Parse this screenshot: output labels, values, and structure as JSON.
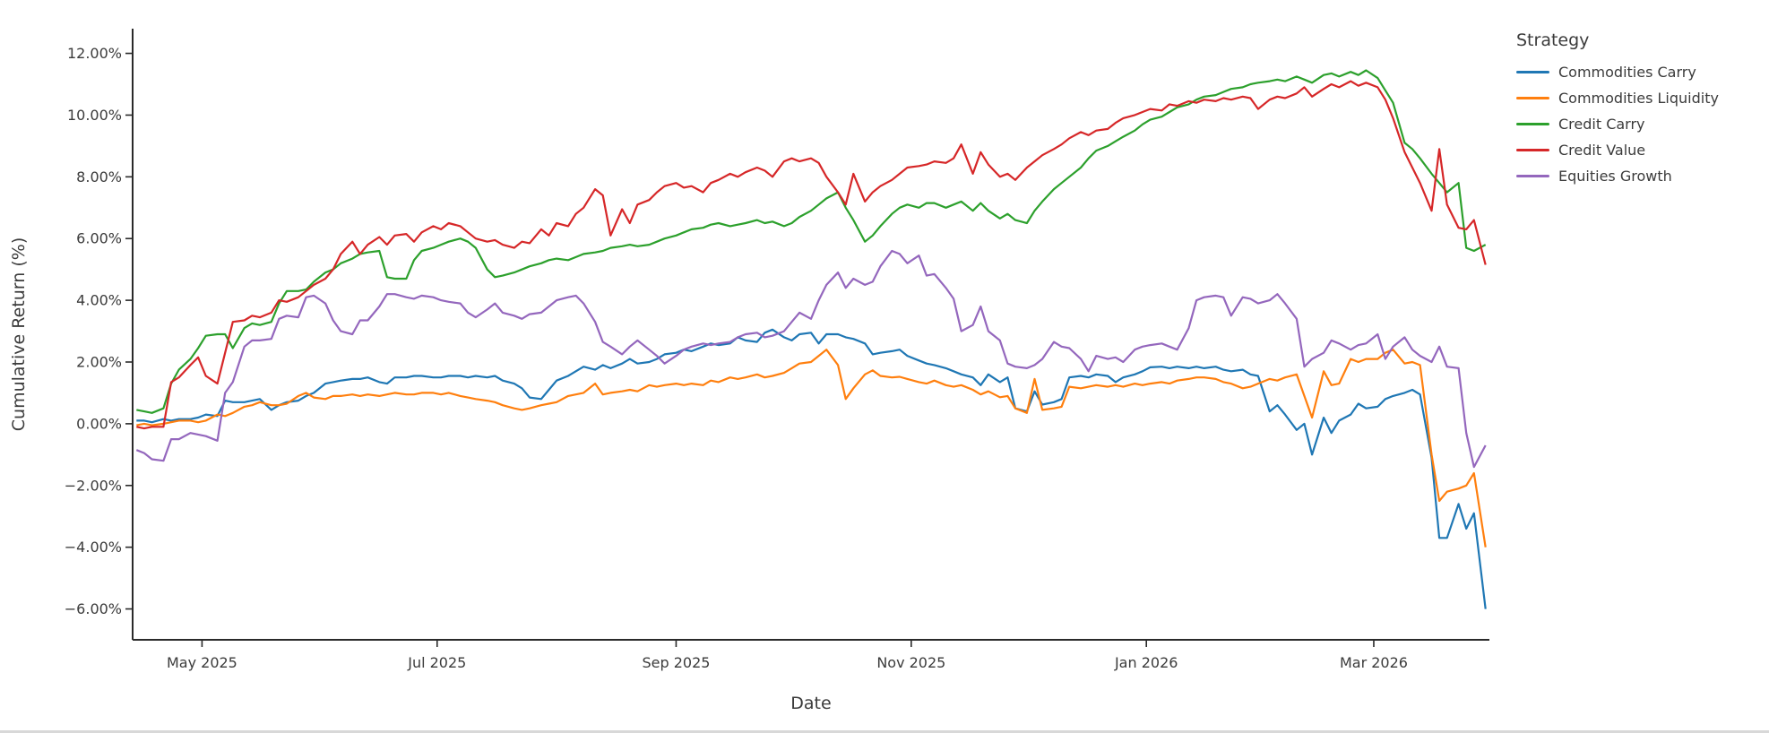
{
  "chart_data": {
    "type": "line",
    "title": "",
    "xlabel": "Date",
    "ylabel": "Cumulative Return (%)",
    "legend_title": "Strategy",
    "legend_position": "right",
    "grid": false,
    "text_color": "#3b3b3b",
    "axis_color": "#2a2a2a",
    "background_color": "#ffffff",
    "xlim": [
      "2025-04-13",
      "2026-03-31"
    ],
    "ylim": [
      -7.0,
      12.8
    ],
    "yticks": [
      {
        "v": 12,
        "label": "12.00%"
      },
      {
        "v": 10,
        "label": "10.00%"
      },
      {
        "v": 8,
        "label": "8.00%"
      },
      {
        "v": 6,
        "label": "6.00%"
      },
      {
        "v": 4,
        "label": "4.00%"
      },
      {
        "v": 2,
        "label": "2.00%"
      },
      {
        "v": 0,
        "label": "0.00%"
      },
      {
        "v": -2,
        "label": "−2.00%"
      },
      {
        "v": -4,
        "label": "−4.00%"
      },
      {
        "v": -6,
        "label": "−6.00%"
      }
    ],
    "xticks": [
      {
        "date": "2025-05-01",
        "label": "May 2025"
      },
      {
        "date": "2025-07-01",
        "label": "Jul 2025"
      },
      {
        "date": "2025-09-01",
        "label": "Sep 2025"
      },
      {
        "date": "2025-11-01",
        "label": "Nov 2025"
      },
      {
        "date": "2026-01-01",
        "label": "Jan 2026"
      },
      {
        "date": "2026-03-01",
        "label": "Mar 2026"
      }
    ],
    "x_dates": [
      "2025-04-14",
      "2025-04-16",
      "2025-04-18",
      "2025-04-21",
      "2025-04-23",
      "2025-04-25",
      "2025-04-28",
      "2025-04-30",
      "2025-05-02",
      "2025-05-05",
      "2025-05-07",
      "2025-05-09",
      "2025-05-12",
      "2025-05-14",
      "2025-05-16",
      "2025-05-19",
      "2025-05-21",
      "2025-05-23",
      "2025-05-26",
      "2025-05-28",
      "2025-05-30",
      "2025-06-02",
      "2025-06-04",
      "2025-06-06",
      "2025-06-09",
      "2025-06-11",
      "2025-06-13",
      "2025-06-16",
      "2025-06-18",
      "2025-06-20",
      "2025-06-23",
      "2025-06-25",
      "2025-06-27",
      "2025-06-30",
      "2025-07-02",
      "2025-07-04",
      "2025-07-07",
      "2025-07-09",
      "2025-07-11",
      "2025-07-14",
      "2025-07-16",
      "2025-07-18",
      "2025-07-21",
      "2025-07-23",
      "2025-07-25",
      "2025-07-28",
      "2025-07-30",
      "2025-08-01",
      "2025-08-04",
      "2025-08-06",
      "2025-08-08",
      "2025-08-11",
      "2025-08-13",
      "2025-08-15",
      "2025-08-18",
      "2025-08-20",
      "2025-08-22",
      "2025-08-25",
      "2025-08-27",
      "2025-08-29",
      "2025-09-01",
      "2025-09-03",
      "2025-09-05",
      "2025-09-08",
      "2025-09-10",
      "2025-09-12",
      "2025-09-15",
      "2025-09-17",
      "2025-09-19",
      "2025-09-22",
      "2025-09-24",
      "2025-09-26",
      "2025-09-29",
      "2025-10-01",
      "2025-10-03",
      "2025-10-06",
      "2025-10-08",
      "2025-10-10",
      "2025-10-13",
      "2025-10-15",
      "2025-10-17",
      "2025-10-20",
      "2025-10-22",
      "2025-10-24",
      "2025-10-27",
      "2025-10-29",
      "2025-10-31",
      "2025-11-03",
      "2025-11-05",
      "2025-11-07",
      "2025-11-10",
      "2025-11-12",
      "2025-11-14",
      "2025-11-17",
      "2025-11-19",
      "2025-11-21",
      "2025-11-24",
      "2025-11-26",
      "2025-11-28",
      "2025-12-01",
      "2025-12-03",
      "2025-12-05",
      "2025-12-08",
      "2025-12-10",
      "2025-12-12",
      "2025-12-15",
      "2025-12-17",
      "2025-12-19",
      "2025-12-22",
      "2025-12-24",
      "2025-12-26",
      "2025-12-29",
      "2025-12-31",
      "2026-01-02",
      "2026-01-05",
      "2026-01-07",
      "2026-01-09",
      "2026-01-12",
      "2026-01-14",
      "2026-01-16",
      "2026-01-19",
      "2026-01-21",
      "2026-01-23",
      "2026-01-26",
      "2026-01-28",
      "2026-01-30",
      "2026-02-02",
      "2026-02-04",
      "2026-02-06",
      "2026-02-09",
      "2026-02-11",
      "2026-02-13",
      "2026-02-16",
      "2026-02-18",
      "2026-02-20",
      "2026-02-23",
      "2026-02-25",
      "2026-02-27",
      "2026-03-02",
      "2026-03-04",
      "2026-03-06",
      "2026-03-09",
      "2026-03-11",
      "2026-03-13",
      "2026-03-16",
      "2026-03-18",
      "2026-03-20",
      "2026-03-23",
      "2026-03-25",
      "2026-03-27",
      "2026-03-30"
    ],
    "series": [
      {
        "name": "Commodities Carry",
        "color": "#1f77b4",
        "values": [
          0.1,
          0.1,
          0.05,
          0.15,
          0.1,
          0.15,
          0.15,
          0.2,
          0.3,
          0.25,
          0.75,
          0.7,
          0.7,
          0.75,
          0.8,
          0.45,
          0.6,
          0.7,
          0.75,
          0.9,
          1.0,
          1.3,
          1.35,
          1.4,
          1.45,
          1.45,
          1.5,
          1.35,
          1.3,
          1.5,
          1.5,
          1.55,
          1.55,
          1.5,
          1.5,
          1.55,
          1.55,
          1.5,
          1.55,
          1.5,
          1.55,
          1.4,
          1.3,
          1.15,
          0.85,
          0.8,
          1.1,
          1.4,
          1.55,
          1.7,
          1.85,
          1.75,
          1.9,
          1.8,
          1.95,
          2.1,
          1.95,
          2.0,
          2.1,
          2.25,
          2.3,
          2.4,
          2.35,
          2.5,
          2.6,
          2.55,
          2.6,
          2.8,
          2.7,
          2.65,
          2.95,
          3.05,
          2.8,
          2.7,
          2.9,
          2.95,
          2.6,
          2.9,
          2.9,
          2.8,
          2.75,
          2.6,
          2.25,
          2.3,
          2.35,
          2.4,
          2.2,
          2.05,
          1.95,
          1.9,
          1.8,
          1.7,
          1.6,
          1.5,
          1.25,
          1.6,
          1.35,
          1.5,
          0.5,
          0.4,
          1.05,
          0.62,
          0.7,
          0.8,
          1.5,
          1.55,
          1.5,
          1.6,
          1.55,
          1.35,
          1.5,
          1.6,
          1.7,
          1.83,
          1.85,
          1.8,
          1.85,
          1.8,
          1.85,
          1.8,
          1.85,
          1.75,
          1.7,
          1.75,
          1.6,
          1.55,
          0.4,
          0.6,
          0.3,
          -0.2,
          0.0,
          -1.0,
          0.2,
          -0.3,
          0.1,
          0.3,
          0.65,
          0.5,
          0.55,
          0.8,
          0.9,
          1.0,
          1.1,
          0.95,
          -1.1,
          -3.7,
          -3.7,
          -2.6,
          -3.4,
          -2.9,
          -6.0
        ]
      },
      {
        "name": "Commodities Liquidity",
        "color": "#ff7f0e",
        "values": [
          -0.05,
          0.0,
          -0.05,
          0.0,
          0.05,
          0.1,
          0.1,
          0.05,
          0.1,
          0.3,
          0.25,
          0.35,
          0.55,
          0.6,
          0.7,
          0.6,
          0.6,
          0.65,
          0.9,
          1.0,
          0.85,
          0.8,
          0.9,
          0.9,
          0.95,
          0.9,
          0.95,
          0.9,
          0.95,
          1.0,
          0.95,
          0.95,
          1.0,
          1.0,
          0.95,
          1.0,
          0.9,
          0.85,
          0.8,
          0.75,
          0.7,
          0.6,
          0.5,
          0.45,
          0.5,
          0.6,
          0.65,
          0.7,
          0.9,
          0.95,
          1.0,
          1.3,
          0.95,
          1.0,
          1.05,
          1.1,
          1.05,
          1.25,
          1.2,
          1.25,
          1.3,
          1.25,
          1.3,
          1.25,
          1.4,
          1.35,
          1.5,
          1.45,
          1.5,
          1.6,
          1.5,
          1.55,
          1.65,
          1.8,
          1.95,
          2.0,
          2.2,
          2.4,
          1.9,
          0.8,
          1.15,
          1.6,
          1.73,
          1.55,
          1.5,
          1.52,
          1.45,
          1.35,
          1.3,
          1.4,
          1.25,
          1.2,
          1.25,
          1.1,
          0.95,
          1.05,
          0.86,
          0.9,
          0.5,
          0.35,
          1.45,
          0.45,
          0.5,
          0.55,
          1.2,
          1.15,
          1.2,
          1.25,
          1.2,
          1.25,
          1.2,
          1.3,
          1.25,
          1.3,
          1.35,
          1.3,
          1.4,
          1.45,
          1.5,
          1.5,
          1.45,
          1.35,
          1.3,
          1.15,
          1.2,
          1.3,
          1.45,
          1.4,
          1.5,
          1.6,
          0.9,
          0.2,
          1.7,
          1.25,
          1.3,
          2.1,
          2.0,
          2.1,
          2.1,
          2.3,
          2.4,
          1.95,
          2.0,
          1.9,
          -1.0,
          -2.5,
          -2.2,
          -2.1,
          -2.0,
          -1.6,
          -4.0
        ]
      },
      {
        "name": "Credit Carry",
        "color": "#2ca02c",
        "values": [
          0.45,
          0.4,
          0.35,
          0.5,
          1.3,
          1.75,
          2.1,
          2.45,
          2.85,
          2.9,
          2.9,
          2.45,
          3.1,
          3.25,
          3.2,
          3.3,
          3.9,
          4.3,
          4.3,
          4.35,
          4.6,
          4.9,
          5.0,
          5.2,
          5.35,
          5.5,
          5.55,
          5.6,
          4.75,
          4.7,
          4.7,
          5.3,
          5.6,
          5.7,
          5.8,
          5.9,
          6.0,
          5.9,
          5.7,
          5.0,
          4.75,
          4.8,
          4.9,
          5.0,
          5.1,
          5.2,
          5.3,
          5.35,
          5.3,
          5.4,
          5.5,
          5.55,
          5.6,
          5.7,
          5.75,
          5.8,
          5.75,
          5.8,
          5.9,
          6.0,
          6.1,
          6.2,
          6.3,
          6.35,
          6.45,
          6.5,
          6.4,
          6.45,
          6.5,
          6.6,
          6.5,
          6.55,
          6.4,
          6.5,
          6.7,
          6.9,
          7.1,
          7.3,
          7.5,
          7.0,
          6.6,
          5.9,
          6.1,
          6.4,
          6.8,
          7.0,
          7.1,
          7.0,
          7.15,
          7.15,
          7.0,
          7.1,
          7.2,
          6.9,
          7.15,
          6.9,
          6.65,
          6.8,
          6.6,
          6.5,
          6.9,
          7.2,
          7.6,
          7.8,
          8.0,
          8.3,
          8.6,
          8.85,
          9.0,
          9.15,
          9.3,
          9.5,
          9.7,
          9.85,
          9.95,
          10.1,
          10.25,
          10.35,
          10.5,
          10.6,
          10.65,
          10.75,
          10.85,
          10.9,
          11.0,
          11.05,
          11.1,
          11.15,
          11.1,
          11.25,
          11.15,
          11.05,
          11.3,
          11.35,
          11.25,
          11.4,
          11.3,
          11.45,
          11.2,
          10.8,
          10.4,
          9.1,
          8.9,
          8.6,
          8.1,
          7.8,
          7.5,
          7.8,
          5.7,
          5.6,
          5.8
        ]
      },
      {
        "name": "Credit Value",
        "color": "#d62728",
        "values": [
          -0.1,
          -0.15,
          -0.1,
          -0.1,
          1.35,
          1.5,
          1.9,
          2.15,
          1.55,
          1.3,
          2.3,
          3.3,
          3.35,
          3.5,
          3.45,
          3.6,
          4.0,
          3.95,
          4.1,
          4.3,
          4.5,
          4.7,
          5.0,
          5.5,
          5.9,
          5.5,
          5.8,
          6.05,
          5.8,
          6.1,
          6.15,
          5.9,
          6.2,
          6.4,
          6.3,
          6.5,
          6.4,
          6.2,
          6.0,
          5.9,
          5.95,
          5.8,
          5.7,
          5.9,
          5.85,
          6.3,
          6.1,
          6.5,
          6.4,
          6.8,
          7.0,
          7.6,
          7.4,
          6.1,
          6.95,
          6.5,
          7.1,
          7.25,
          7.5,
          7.7,
          7.8,
          7.65,
          7.7,
          7.5,
          7.8,
          7.9,
          8.1,
          8.0,
          8.15,
          8.3,
          8.2,
          8.0,
          8.5,
          8.6,
          8.5,
          8.6,
          8.45,
          8.0,
          7.5,
          7.1,
          8.1,
          7.2,
          7.5,
          7.7,
          7.9,
          8.1,
          8.3,
          8.35,
          8.4,
          8.5,
          8.45,
          8.6,
          9.05,
          8.1,
          8.8,
          8.4,
          8.0,
          8.1,
          7.9,
          8.3,
          8.5,
          8.7,
          8.9,
          9.05,
          9.25,
          9.45,
          9.35,
          9.5,
          9.55,
          9.75,
          9.9,
          10.0,
          10.1,
          10.2,
          10.15,
          10.35,
          10.3,
          10.45,
          10.4,
          10.5,
          10.45,
          10.55,
          10.5,
          10.6,
          10.55,
          10.2,
          10.5,
          10.6,
          10.55,
          10.7,
          10.9,
          10.6,
          10.85,
          11.0,
          10.9,
          11.1,
          10.95,
          11.05,
          10.9,
          10.5,
          9.9,
          8.8,
          8.3,
          7.8,
          6.9,
          8.9,
          7.1,
          6.35,
          6.3,
          6.6,
          5.15
        ]
      },
      {
        "name": "Equities Growth",
        "color": "#9467bd",
        "values": [
          -0.85,
          -0.95,
          -1.15,
          -1.2,
          -0.5,
          -0.5,
          -0.3,
          -0.35,
          -0.4,
          -0.55,
          1.0,
          1.35,
          2.5,
          2.7,
          2.7,
          2.75,
          3.4,
          3.5,
          3.45,
          4.1,
          4.15,
          3.9,
          3.35,
          3.0,
          2.9,
          3.35,
          3.35,
          3.8,
          4.2,
          4.2,
          4.1,
          4.05,
          4.15,
          4.1,
          4.0,
          3.95,
          3.9,
          3.6,
          3.45,
          3.7,
          3.9,
          3.6,
          3.5,
          3.4,
          3.55,
          3.6,
          3.8,
          4.0,
          4.1,
          4.15,
          3.9,
          3.3,
          2.65,
          2.5,
          2.25,
          2.5,
          2.7,
          2.4,
          2.2,
          1.95,
          2.2,
          2.4,
          2.5,
          2.6,
          2.55,
          2.6,
          2.65,
          2.8,
          2.9,
          2.95,
          2.8,
          2.85,
          3.0,
          3.3,
          3.6,
          3.4,
          4.0,
          4.5,
          4.9,
          4.4,
          4.7,
          4.5,
          4.6,
          5.1,
          5.6,
          5.5,
          5.2,
          5.45,
          4.8,
          4.85,
          4.4,
          4.05,
          3.0,
          3.2,
          3.8,
          3.0,
          2.7,
          1.95,
          1.85,
          1.8,
          1.9,
          2.1,
          2.65,
          2.5,
          2.45,
          2.1,
          1.7,
          2.2,
          2.1,
          2.15,
          2.0,
          2.4,
          2.5,
          2.55,
          2.6,
          2.5,
          2.4,
          3.1,
          4.0,
          4.1,
          4.15,
          4.1,
          3.5,
          4.1,
          4.05,
          3.9,
          4.0,
          4.2,
          3.9,
          3.4,
          1.85,
          2.1,
          2.3,
          2.7,
          2.6,
          2.4,
          2.55,
          2.6,
          2.9,
          2.1,
          2.5,
          2.8,
          2.4,
          2.2,
          2.0,
          2.5,
          1.85,
          1.8,
          -0.3,
          -1.4,
          -0.7
        ]
      }
    ]
  }
}
